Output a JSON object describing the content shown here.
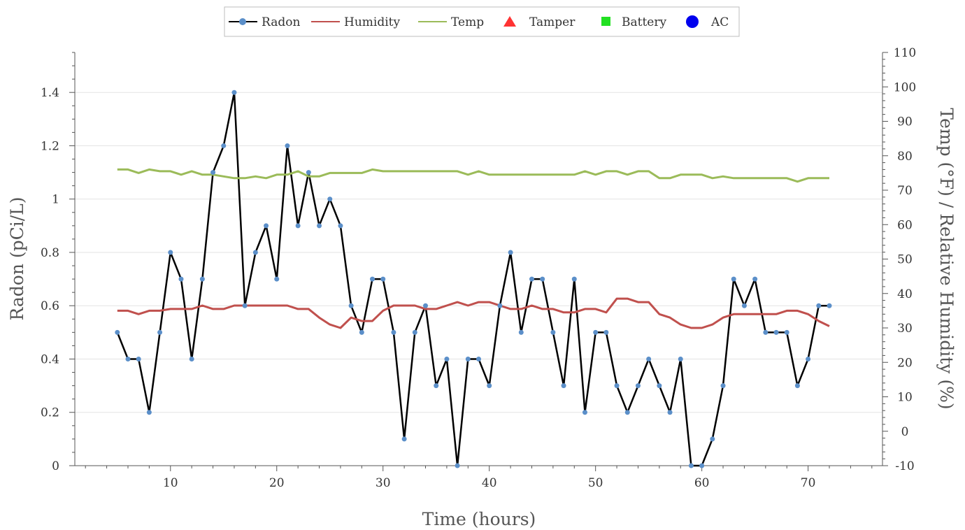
{
  "colors": {
    "radon_line": "#000000",
    "radon_marker": "#5b8fc9",
    "humidity": "#c0504d",
    "temp": "#9bbb59",
    "tamper": "#ff3333",
    "battery": "#22e022",
    "ac": "#0000ee"
  },
  "legend": {
    "radon": "Radon",
    "humidity": "Humidity",
    "temp": "Temp",
    "tamper": "Tamper",
    "battery": "Battery",
    "ac": "AC"
  },
  "chart_data": {
    "type": "line",
    "title": "",
    "xlabel": "Time (hours)",
    "ylabel_left": "Radon (pCi/L)",
    "ylabel_right": "Temp (°F) / Relative Humidity (%)",
    "xlim": [
      1,
      77
    ],
    "ylim_left": [
      0,
      1.55
    ],
    "ylim_right": [
      -10,
      110
    ],
    "x_ticks": [
      "10",
      "20",
      "30",
      "40",
      "50",
      "60",
      "70"
    ],
    "y_left_ticks": [
      "0",
      "0.2",
      "0.4",
      "0.6",
      "0.8",
      "1",
      "1.2",
      "1.4"
    ],
    "y_right_ticks": [
      "-10",
      "0",
      "10",
      "20",
      "30",
      "40",
      "50",
      "60",
      "70",
      "80",
      "90",
      "100",
      "110"
    ],
    "grid": "horizontal",
    "legend_position": "top-center",
    "series": [
      {
        "name": "Radon",
        "axis": "left",
        "x": [
          5,
          6,
          7,
          8,
          9,
          10,
          11,
          12,
          13,
          14,
          15,
          16,
          17,
          18,
          19,
          20,
          21,
          22,
          23,
          24,
          25,
          26,
          27,
          28,
          29,
          30,
          31,
          32,
          33,
          34,
          35,
          36,
          37,
          38,
          39,
          40,
          41,
          42,
          43,
          44,
          45,
          46,
          47,
          48,
          49,
          50,
          51,
          52,
          53,
          54,
          55,
          56,
          57,
          58,
          59,
          60,
          61,
          62,
          63,
          64,
          65,
          66,
          67,
          68,
          69,
          70,
          71,
          72
        ],
        "values": [
          0.5,
          0.4,
          0.4,
          0.2,
          0.5,
          0.8,
          0.7,
          0.4,
          0.7,
          1.1,
          1.2,
          1.4,
          0.6,
          0.8,
          0.9,
          0.7,
          1.2,
          0.9,
          1.1,
          0.9,
          1.0,
          0.9,
          0.6,
          0.5,
          0.7,
          0.7,
          0.5,
          0.1,
          0.5,
          0.6,
          0.3,
          0.4,
          0.0,
          0.4,
          0.4,
          0.3,
          0.6,
          0.8,
          0.5,
          0.7,
          0.7,
          0.5,
          0.3,
          0.7,
          0.2,
          0.5,
          0.5,
          0.3,
          0.2,
          0.3,
          0.4,
          0.3,
          0.2,
          0.4,
          0.0,
          0.0,
          0.1,
          0.3,
          0.7,
          0.6,
          0.7,
          0.5,
          0.5,
          0.5,
          0.3,
          0.4,
          0.6,
          0.6
        ]
      },
      {
        "name": "Humidity",
        "axis": "right",
        "x": [
          5,
          6,
          7,
          8,
          9,
          10,
          11,
          12,
          13,
          14,
          15,
          16,
          17,
          18,
          19,
          20,
          21,
          22,
          23,
          24,
          25,
          26,
          27,
          28,
          29,
          30,
          31,
          32,
          33,
          34,
          35,
          36,
          37,
          38,
          39,
          40,
          41,
          42,
          43,
          44,
          45,
          46,
          47,
          48,
          49,
          50,
          51,
          52,
          53,
          54,
          55,
          56,
          57,
          58,
          59,
          60,
          61,
          62,
          63,
          64,
          65,
          66,
          67,
          68,
          69,
          70,
          71,
          72
        ],
        "values": [
          35,
          35,
          34,
          35,
          35,
          35.5,
          35.5,
          35.5,
          36.5,
          35.5,
          35.5,
          36.5,
          36.5,
          36.5,
          36.5,
          36.5,
          36.5,
          35.5,
          35.5,
          33,
          31,
          30,
          33,
          32,
          32,
          35,
          36.5,
          36.5,
          36.5,
          35.5,
          35.5,
          36.5,
          37.5,
          36.5,
          37.5,
          37.5,
          36.5,
          35.5,
          35.5,
          36.5,
          35.5,
          35.5,
          34.5,
          34.5,
          35.5,
          35.5,
          34.5,
          38.5,
          38.5,
          37.5,
          37.5,
          34,
          33,
          31,
          30,
          30,
          31,
          33,
          34,
          34,
          34,
          34,
          34,
          35,
          35,
          34,
          32,
          30.5
        ]
      },
      {
        "name": "Temp",
        "axis": "right",
        "x": [
          5,
          6,
          7,
          8,
          9,
          10,
          11,
          12,
          13,
          14,
          15,
          16,
          17,
          18,
          19,
          20,
          21,
          22,
          23,
          24,
          25,
          26,
          27,
          28,
          29,
          30,
          31,
          32,
          33,
          34,
          35,
          36,
          37,
          38,
          39,
          40,
          41,
          42,
          43,
          44,
          45,
          46,
          47,
          48,
          49,
          50,
          51,
          52,
          53,
          54,
          55,
          56,
          57,
          58,
          59,
          60,
          61,
          62,
          63,
          64,
          65,
          66,
          67,
          68,
          69,
          70,
          71,
          72
        ],
        "values": [
          76,
          76,
          75,
          76,
          75.5,
          75.5,
          74.5,
          75.5,
          74.5,
          74.5,
          74,
          73.5,
          73.5,
          74,
          73.5,
          74.5,
          74.5,
          75.5,
          74,
          74,
          75,
          75,
          75,
          75,
          76,
          75.5,
          75.5,
          75.5,
          75.5,
          75.5,
          75.5,
          75.5,
          75.5,
          74.5,
          75.5,
          74.5,
          74.5,
          74.5,
          74.5,
          74.5,
          74.5,
          74.5,
          74.5,
          74.5,
          75.5,
          74.5,
          75.5,
          75.5,
          74.5,
          75.5,
          75.5,
          73.5,
          73.5,
          74.5,
          74.5,
          74.5,
          73.5,
          74,
          73.5,
          73.5,
          73.5,
          73.5,
          73.5,
          73.5,
          72.5,
          73.5,
          73.5,
          73.5
        ]
      },
      {
        "name": "Tamper",
        "axis": "right",
        "x": [],
        "values": []
      },
      {
        "name": "Battery",
        "axis": "right",
        "x": [],
        "values": []
      },
      {
        "name": "AC",
        "axis": "right",
        "x": [],
        "values": []
      }
    ]
  }
}
